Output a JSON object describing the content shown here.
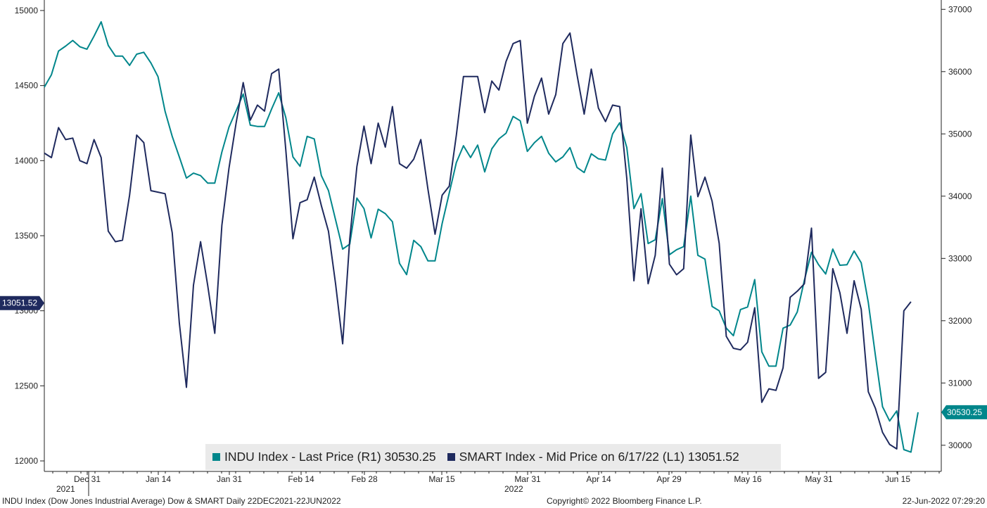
{
  "chart_data": {
    "type": "line",
    "x_ticks": [
      "Dec 31",
      "Jan 14",
      "Jan 31",
      "Feb 14",
      "Feb 28",
      "Mar 15",
      "Mar 31",
      "Apr 14",
      "Apr 29",
      "May 16",
      "May 31",
      "Jun 15"
    ],
    "year_labels": [
      "2021",
      "2022"
    ],
    "left_axis": {
      "ticks": [
        12000,
        12500,
        13000,
        13500,
        14000,
        14500,
        15000
      ],
      "ylim": [
        11930,
        15070
      ]
    },
    "right_axis": {
      "ticks": [
        30000,
        31000,
        32000,
        33000,
        34000,
        35000,
        36000,
        37000
      ],
      "ylim": [
        29580,
        37150
      ]
    },
    "series": [
      {
        "name": "INDU Index - Last Price (R1)",
        "axis": "right",
        "color": "#00868b",
        "last_value": "30530.25",
        "values": [
          35750,
          35950,
          36330,
          36410,
          36500,
          36400,
          36360,
          36570,
          36800,
          36420,
          36250,
          36250,
          36100,
          36280,
          36310,
          36140,
          35920,
          35360,
          34960,
          34630,
          34290,
          34370,
          34330,
          34210,
          34210,
          34710,
          35110,
          35370,
          35640,
          35140,
          35120,
          35120,
          35400,
          35660,
          35260,
          34630,
          34480,
          34960,
          34920,
          34330,
          34090,
          33620,
          33150,
          33230,
          33970,
          33800,
          33330,
          33790,
          33720,
          33590,
          32920,
          32740,
          33290,
          33190,
          32960,
          32960,
          33560,
          34050,
          34540,
          34810,
          34620,
          34820,
          34390,
          34760,
          34920,
          35010,
          35280,
          35210,
          34720,
          34860,
          34960,
          34690,
          34550,
          34630,
          34780,
          34460,
          34380,
          34680,
          34600,
          34580,
          35000,
          35180,
          34780,
          33800,
          34040,
          33240,
          33300,
          33960,
          33060,
          33140,
          33190,
          34000,
          33050,
          32990,
          32230,
          32160,
          31880,
          31760,
          32180,
          32220,
          32660,
          31500,
          31270,
          31270,
          31880,
          31930,
          32140,
          32650,
          33100,
          32900,
          32750,
          33150,
          32890,
          32900,
          33120,
          32930,
          32290,
          31440,
          30620,
          30390,
          30550,
          29930,
          29890,
          30530
        ]
      },
      {
        "name": "SMART Index - Mid Price on 6/17/22 (L1)",
        "axis": "left",
        "color": "#1f2a5e",
        "last_value": "13051.52",
        "values": [
          14050,
          14020,
          14220,
          14140,
          14150,
          14000,
          13980,
          14140,
          14020,
          13530,
          13460,
          13470,
          13770,
          14170,
          14120,
          13800,
          13790,
          13780,
          13520,
          12920,
          12490,
          13170,
          13460,
          13170,
          12850,
          13570,
          13950,
          14250,
          14520,
          14270,
          14370,
          14330,
          14580,
          14610,
          14070,
          13480,
          13720,
          13740,
          13890,
          13700,
          13530,
          13180,
          12780,
          13480,
          13960,
          14230,
          13980,
          14250,
          14090,
          14360,
          13980,
          13950,
          14010,
          14140,
          13810,
          13510,
          13770,
          13830,
          14170,
          14560,
          14560,
          14560,
          14320,
          14530,
          14470,
          14660,
          14780,
          14800,
          14250,
          14430,
          14550,
          14310,
          14440,
          14780,
          14850,
          14570,
          14310,
          14610,
          14350,
          14260,
          14370,
          14360,
          13880,
          13200,
          13680,
          13180,
          13370,
          13950,
          13310,
          13240,
          13280,
          14170,
          13760,
          13890,
          13730,
          13450,
          12830,
          12750,
          12740,
          12790,
          13020,
          12390,
          12480,
          12470,
          12620,
          13090,
          13130,
          13180,
          13550,
          12550,
          12590,
          13280,
          13120,
          12850,
          13200,
          13010,
          12460,
          12350,
          12190,
          12110,
          12080,
          13000,
          13060
        ]
      }
    ]
  },
  "footer": {
    "left": "INDU Index (Dow Jones Industrial Average) Dow & SMART  Daily 22DEC2021-22JUN2022",
    "center": "Copyright© 2022 Bloomberg Finance L.P.",
    "right": "22-Jun-2022 07:29:20"
  },
  "legend": {
    "indu_label": "INDU Index - Last Price (R1) 30530.25",
    "smart_label": "SMART Index - Mid Price on 6/17/22 (L1) 13051.52"
  },
  "colors": {
    "indu": "#00868b",
    "smart": "#1f2a5e",
    "legend_bg": "#eaeaea"
  }
}
